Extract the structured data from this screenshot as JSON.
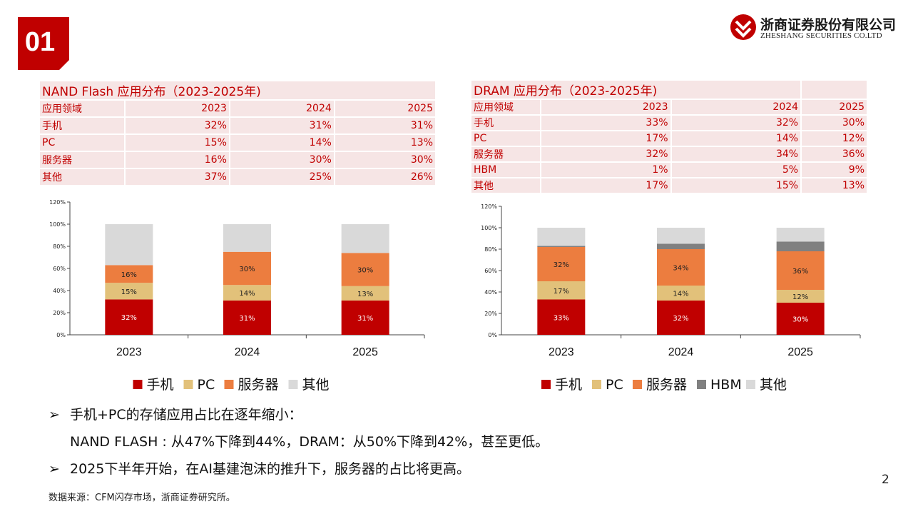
{
  "header": {
    "section_number": "01",
    "logo_cn": "浙商证券股份有限公司",
    "logo_en": "ZHESHANG SECURITIES CO.LTD",
    "brand_color": "#c00000"
  },
  "nand_table": {
    "title": "NAND Flash 应用分布（2023-2025年)",
    "header": [
      "应用领域",
      "2023",
      "2024",
      "2025"
    ],
    "rows": [
      [
        "手机",
        "32%",
        "31%",
        "31%"
      ],
      [
        "PC",
        "15%",
        "14%",
        "13%"
      ],
      [
        "服务器",
        "16%",
        "30%",
        "30%"
      ],
      [
        "其他",
        "37%",
        "25%",
        "26%"
      ]
    ]
  },
  "dram_table": {
    "title": "DRAM 应用分布（2023-2025年)",
    "header": [
      "应用领域",
      "2023",
      "2024",
      "2025"
    ],
    "rows": [
      [
        "手机",
        "33%",
        "32%",
        "30%"
      ],
      [
        "PC",
        "17%",
        "14%",
        "12%"
      ],
      [
        "服务器",
        "32%",
        "34%",
        "36%"
      ],
      [
        "HBM",
        "1%",
        "5%",
        "9%"
      ],
      [
        "其他",
        "17%",
        "15%",
        "13%"
      ]
    ]
  },
  "chart_data": [
    {
      "type": "bar",
      "stacked": true,
      "title": "NAND Flash 应用分布（2023-2025年)",
      "categories": [
        "2023",
        "2024",
        "2025"
      ],
      "ylim": [
        0,
        120
      ],
      "yticks": [
        "0%",
        "20%",
        "40%",
        "60%",
        "80%",
        "100%",
        "120%"
      ],
      "series": [
        {
          "name": "手机",
          "color": "#c00000",
          "values": [
            32,
            31,
            31
          ],
          "labels": [
            "32%",
            "31%",
            "31%"
          ]
        },
        {
          "name": "PC",
          "color": "#e2c17a",
          "values": [
            15,
            14,
            13
          ],
          "labels": [
            "15%",
            "14%",
            "13%"
          ]
        },
        {
          "name": "服务器",
          "color": "#ec7d3f",
          "values": [
            16,
            30,
            30
          ],
          "labels": [
            "16%",
            "30%",
            "30%"
          ]
        },
        {
          "name": "其他",
          "color": "#d9d9d9",
          "values": [
            37,
            25,
            26
          ],
          "labels": [
            "",
            "",
            ""
          ]
        }
      ],
      "legend": "bottom"
    },
    {
      "type": "bar",
      "stacked": true,
      "title": "DRAM 应用分布（2023-2025年)",
      "categories": [
        "2023",
        "2024",
        "2025"
      ],
      "ylim": [
        0,
        120
      ],
      "yticks": [
        "0%",
        "20%",
        "40%",
        "60%",
        "80%",
        "100%",
        "120%"
      ],
      "series": [
        {
          "name": "手机",
          "color": "#c00000",
          "values": [
            33,
            32,
            30
          ],
          "labels": [
            "33%",
            "32%",
            "30%"
          ]
        },
        {
          "name": "PC",
          "color": "#e2c17a",
          "values": [
            17,
            14,
            12
          ],
          "labels": [
            "17%",
            "14%",
            "12%"
          ]
        },
        {
          "name": "服务器",
          "color": "#ec7d3f",
          "values": [
            32,
            34,
            36
          ],
          "labels": [
            "32%",
            "34%",
            "36%"
          ]
        },
        {
          "name": "HBM",
          "color": "#808080",
          "values": [
            1,
            5,
            9
          ],
          "labels": [
            "",
            "",
            ""
          ]
        },
        {
          "name": "其他",
          "color": "#d9d9d9",
          "values": [
            17,
            15,
            13
          ],
          "labels": [
            "",
            "",
            ""
          ]
        }
      ],
      "legend": "bottom"
    }
  ],
  "bullets": {
    "line1": "手机+PC的存储应用占比在逐年缩小：",
    "line2": "NAND FLASH : 从47%下降到44%，DRAM：从50%下降到42%，甚至更低。",
    "line3": "2025下半年开始，在AI基建泡沫的推升下，服务器的占比将更高。"
  },
  "footer": {
    "source": "数据来源：CFM闪存市场，浙商证券研究所。",
    "page_number": "2"
  }
}
